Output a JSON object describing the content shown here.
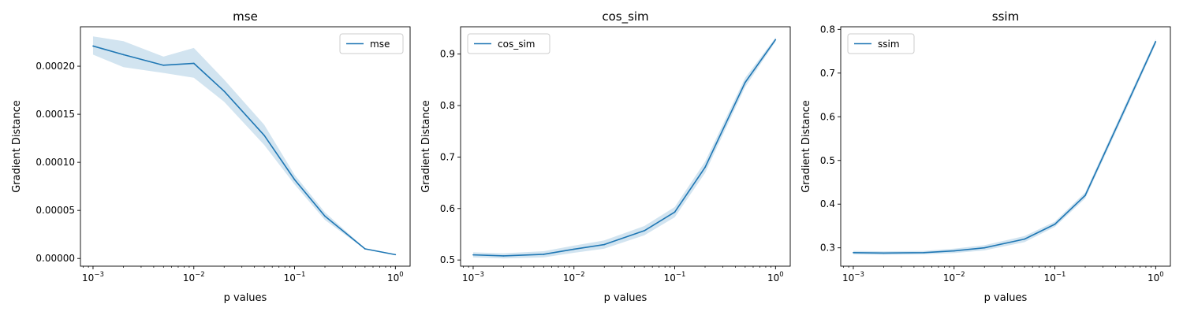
{
  "chart_data": [
    {
      "type": "line",
      "title": "mse",
      "xlabel": "p values",
      "ylabel": "Gradient Distance",
      "xscale": "log",
      "xlim": [
        0.00075,
        1.4
      ],
      "ylim": [
        -8e-06,
        0.000241
      ],
      "xticks": [
        {
          "value": 0.001,
          "base": "10",
          "exp": "−3"
        },
        {
          "value": 0.01,
          "base": "10",
          "exp": "−2"
        },
        {
          "value": 0.1,
          "base": "10",
          "exp": "−1"
        },
        {
          "value": 1,
          "base": "10",
          "exp": "0"
        }
      ],
      "yticks": [
        {
          "value": 0.0,
          "label": "0.00000"
        },
        {
          "value": 5e-05,
          "label": "0.00005"
        },
        {
          "value": 0.0001,
          "label": "0.00010"
        },
        {
          "value": 0.00015,
          "label": "0.00015"
        },
        {
          "value": 0.0002,
          "label": "0.00020"
        }
      ],
      "legend_position": "top-right",
      "series": [
        {
          "name": "mse",
          "color": "#1f77b4",
          "x": [
            0.001,
            0.002,
            0.005,
            0.01,
            0.02,
            0.05,
            0.1,
            0.2,
            0.5,
            1.0
          ],
          "y": [
            0.000221,
            0.000212,
            0.000201,
            0.000203,
            0.000174,
            0.000128,
            8.2e-05,
            4.4e-05,
            1e-05,
            4e-06
          ],
          "y_lower": [
            0.000212,
            0.000199,
            0.000193,
            0.000188,
            0.000163,
            0.000118,
            7.7e-05,
            4e-05,
            9.5e-06,
            3.5e-06
          ],
          "y_upper": [
            0.000231,
            0.000226,
            0.00021,
            0.000219,
            0.000186,
            0.000139,
            8.7e-05,
            4.8e-05,
            1.05e-05,
            4.5e-06
          ]
        }
      ]
    },
    {
      "type": "line",
      "title": "cos_sim",
      "xlabel": "p values",
      "ylabel": "Gradient Distance",
      "xscale": "log",
      "xlim": [
        0.00075,
        1.4
      ],
      "ylim": [
        0.488,
        0.953
      ],
      "xticks": [
        {
          "value": 0.001,
          "base": "10",
          "exp": "−3"
        },
        {
          "value": 0.01,
          "base": "10",
          "exp": "−2"
        },
        {
          "value": 0.1,
          "base": "10",
          "exp": "−1"
        },
        {
          "value": 1,
          "base": "10",
          "exp": "0"
        }
      ],
      "yticks": [
        {
          "value": 0.5,
          "label": "0.5"
        },
        {
          "value": 0.6,
          "label": "0.6"
        },
        {
          "value": 0.7,
          "label": "0.7"
        },
        {
          "value": 0.8,
          "label": "0.8"
        },
        {
          "value": 0.9,
          "label": "0.9"
        }
      ],
      "legend_position": "top-left",
      "series": [
        {
          "name": "cos_sim",
          "color": "#1f77b4",
          "x": [
            0.001,
            0.002,
            0.005,
            0.01,
            0.02,
            0.05,
            0.1,
            0.2,
            0.5,
            1.0
          ],
          "y": [
            0.51,
            0.508,
            0.511,
            0.521,
            0.53,
            0.557,
            0.593,
            0.68,
            0.845,
            0.928
          ],
          "y_lower": [
            0.505,
            0.503,
            0.505,
            0.514,
            0.522,
            0.548,
            0.583,
            0.669,
            0.836,
            0.924
          ],
          "y_upper": [
            0.515,
            0.513,
            0.517,
            0.528,
            0.538,
            0.566,
            0.603,
            0.691,
            0.854,
            0.932
          ]
        }
      ]
    },
    {
      "type": "line",
      "title": "ssim",
      "xlabel": "p values",
      "ylabel": "Gradient Distance",
      "xscale": "log",
      "xlim": [
        0.00075,
        1.4
      ],
      "ylim": [
        0.258,
        0.806
      ],
      "xticks": [
        {
          "value": 0.001,
          "base": "10",
          "exp": "−3"
        },
        {
          "value": 0.01,
          "base": "10",
          "exp": "−2"
        },
        {
          "value": 0.1,
          "base": "10",
          "exp": "−1"
        },
        {
          "value": 1,
          "base": "10",
          "exp": "0"
        }
      ],
      "yticks": [
        {
          "value": 0.3,
          "label": "0.3"
        },
        {
          "value": 0.4,
          "label": "0.4"
        },
        {
          "value": 0.5,
          "label": "0.5"
        },
        {
          "value": 0.6,
          "label": "0.6"
        },
        {
          "value": 0.7,
          "label": "0.7"
        },
        {
          "value": 0.8,
          "label": "0.8"
        }
      ],
      "legend_position": "top-left",
      "series": [
        {
          "name": "ssim",
          "color": "#1f77b4",
          "x": [
            0.001,
            0.002,
            0.005,
            0.01,
            0.02,
            0.05,
            0.1,
            0.2,
            0.5,
            1.0
          ],
          "y": [
            0.289,
            0.288,
            0.289,
            0.293,
            0.3,
            0.32,
            0.354,
            0.42,
            0.62,
            0.772
          ],
          "y_lower": [
            0.285,
            0.284,
            0.285,
            0.288,
            0.294,
            0.313,
            0.348,
            0.413,
            0.612,
            0.766
          ],
          "y_upper": [
            0.293,
            0.292,
            0.293,
            0.298,
            0.306,
            0.327,
            0.36,
            0.427,
            0.628,
            0.778
          ]
        }
      ]
    }
  ]
}
